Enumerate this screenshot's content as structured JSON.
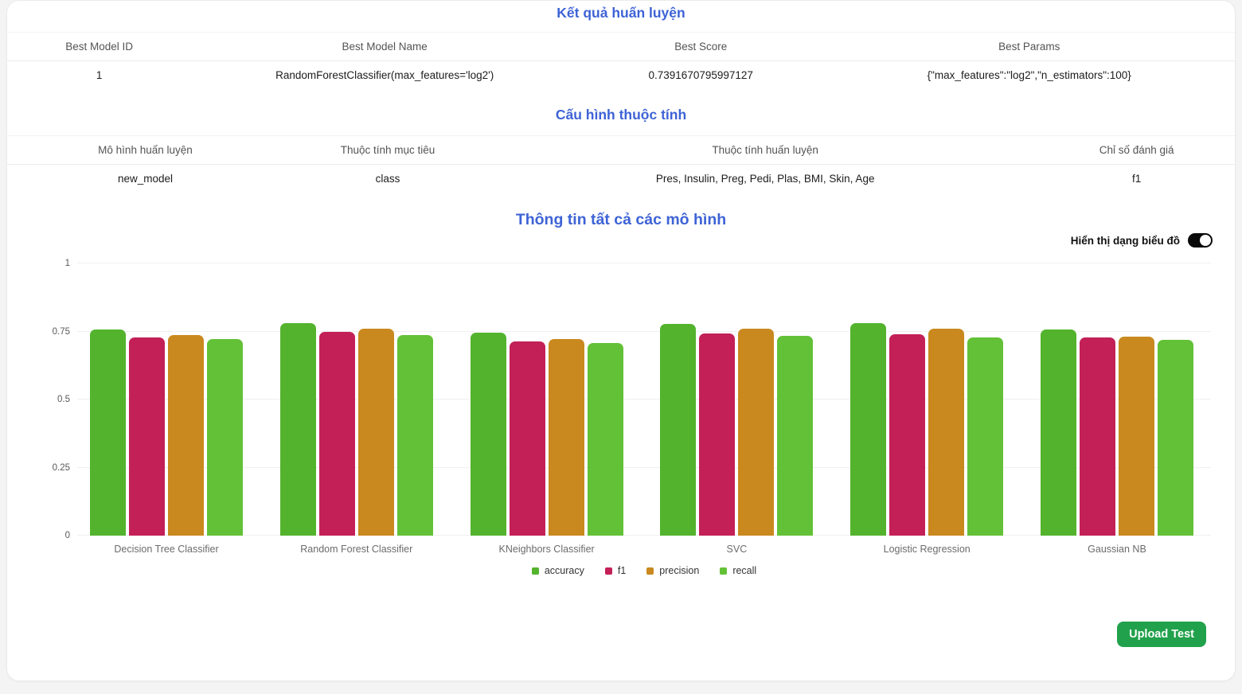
{
  "colors": {
    "heading": "#3e63d6",
    "button_green": "#21a14b",
    "toggle_on": "#0a0a0a",
    "page_bg": "#f4f4f5"
  },
  "results_section": {
    "title": "Kết quả huấn luyện",
    "table": {
      "headers": [
        "Best Model ID",
        "Best Model Name",
        "Best Score",
        "Best Params"
      ],
      "row": [
        "1",
        "RandomForestClassifier(max_features='log2')",
        "0.7391670795997127",
        "{\"max_features\":\"log2\",\"n_estimators\":100}"
      ]
    }
  },
  "config_section": {
    "title": "Cấu hình thuộc tính",
    "table": {
      "headers": [
        "Mô hình huấn luyện",
        "Thuộc tính mục tiêu",
        "Thuộc tính huấn luyện",
        "Chỉ số đánh giá"
      ],
      "row": [
        "new_model",
        "class",
        "Pres, Insulin, Preg, Pedi, Plas, BMI, Skin, Age",
        "f1"
      ]
    }
  },
  "models_section": {
    "title": "Thông tin tất cả các mô hình",
    "toggle_label": "Hiển thị dạng biểu đồ",
    "toggle_state": "on"
  },
  "chart_data": {
    "type": "bar",
    "categories": [
      "Decision Tree Classifier",
      "Random Forest Classifier",
      "KNeighbors Classifier",
      "SVC",
      "Logistic Regression",
      "Gaussian NB"
    ],
    "series": [
      {
        "name": "accuracy",
        "color": "#53b32d",
        "values": [
          0.757,
          0.78,
          0.746,
          0.778,
          0.781,
          0.758
        ]
      },
      {
        "name": "f1",
        "color": "#c32058",
        "values": [
          0.727,
          0.748,
          0.714,
          0.742,
          0.74,
          0.727
        ]
      },
      {
        "name": "precision",
        "color": "#c9891e",
        "values": [
          0.738,
          0.761,
          0.722,
          0.759,
          0.76,
          0.731
        ]
      },
      {
        "name": "recall",
        "color": "#63c137",
        "values": [
          0.721,
          0.736,
          0.707,
          0.734,
          0.728,
          0.719
        ]
      }
    ],
    "yticks": [
      {
        "label": "0",
        "value": 0
      },
      {
        "label": "0.25",
        "value": 0.25
      },
      {
        "label": "0.5",
        "value": 0.5
      },
      {
        "label": "0.75",
        "value": 0.75
      },
      {
        "label": "1",
        "value": 1
      }
    ],
    "ylim": [
      0,
      1
    ],
    "grid": true,
    "legend_position": "bottom",
    "title": "Thông tin tất cả các mô hình",
    "xlabel": "",
    "ylabel": ""
  },
  "footer": {
    "upload_button_label": "Upload Test"
  }
}
